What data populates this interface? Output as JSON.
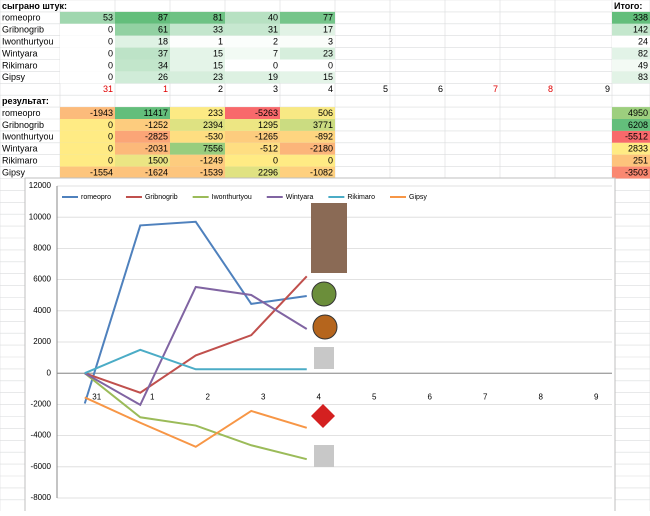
{
  "played": {
    "title": "сыграно штук:",
    "total_title": "Итого:",
    "rows": [
      {
        "name": "romeopro",
        "values": [
          53,
          87,
          81,
          40,
          77
        ],
        "total": 338
      },
      {
        "name": "Gribnogrib",
        "values": [
          0,
          61,
          33,
          31,
          17
        ],
        "total": 142
      },
      {
        "name": "Iwonthurtyou",
        "values": [
          0,
          18,
          1,
          2,
          3
        ],
        "total": 24
      },
      {
        "name": "Wintyara",
        "values": [
          0,
          37,
          15,
          7,
          23
        ],
        "total": 82
      },
      {
        "name": "Rikimaro",
        "values": [
          0,
          34,
          15,
          0,
          0
        ],
        "total": 49
      },
      {
        "name": "Gipsy",
        "values": [
          0,
          26,
          23,
          19,
          15
        ],
        "total": 83
      }
    ]
  },
  "days": [
    31,
    1,
    2,
    3,
    4,
    5,
    6,
    7,
    8,
    9
  ],
  "days_red": [
    true,
    true,
    false,
    false,
    false,
    false,
    false,
    true,
    true,
    false
  ],
  "result": {
    "title": "результат:",
    "rows": [
      {
        "name": "romeopro",
        "values": [
          -1943,
          11417,
          233,
          -5263,
          506
        ],
        "total": 4950
      },
      {
        "name": "Gribnogrib",
        "values": [
          0,
          -1252,
          2394,
          1295,
          3771
        ],
        "total": 6208
      },
      {
        "name": "Iwonthurtyou",
        "values": [
          0,
          -2825,
          -530,
          -1265,
          -892
        ],
        "total": -5512
      },
      {
        "name": "Wintyara",
        "values": [
          0,
          -2031,
          7556,
          -512,
          -2180
        ],
        "total": 2833
      },
      {
        "name": "Rikimaro",
        "values": [
          0,
          1500,
          -1249,
          0,
          0
        ],
        "total": 251
      },
      {
        "name": "Gipsy",
        "values": [
          -1554,
          -1624,
          -1539,
          2296,
          -1082
        ],
        "total": -3503
      }
    ]
  },
  "chart_data": {
    "type": "line",
    "categories": [
      31,
      1,
      2,
      3,
      4,
      5,
      6,
      7,
      8,
      9
    ],
    "series": [
      {
        "name": "romeopro",
        "color": "#4f81bd",
        "values": [
          -1943,
          9474,
          9707,
          4444,
          4950,
          null,
          null,
          null,
          null,
          null
        ]
      },
      {
        "name": "Gribnogrib",
        "color": "#c0504d",
        "values": [
          0,
          -1252,
          1142,
          2437,
          6208,
          null,
          null,
          null,
          null,
          null
        ]
      },
      {
        "name": "Iwonthurtyou",
        "color": "#9bbb59",
        "values": [
          0,
          -2825,
          -3355,
          -4620,
          -5512,
          null,
          null,
          null,
          null,
          null
        ]
      },
      {
        "name": "Wintyara",
        "color": "#8064a2",
        "values": [
          0,
          -2031,
          5525,
          5013,
          2833,
          null,
          null,
          null,
          null,
          null
        ]
      },
      {
        "name": "Rikimaro",
        "color": "#4bacc6",
        "values": [
          0,
          1500,
          251,
          251,
          251,
          null,
          null,
          null,
          null,
          null
        ]
      },
      {
        "name": "Gipsy",
        "color": "#f79646",
        "values": [
          -1554,
          -3178,
          -4717,
          -2421,
          -3503,
          null,
          null,
          null,
          null,
          null
        ]
      }
    ],
    "ylim": [
      -8000,
      12000
    ],
    "yticks": [
      -8000,
      -6000,
      -4000,
      -2000,
      0,
      2000,
      4000,
      6000,
      8000,
      10000,
      12000
    ],
    "grid": true,
    "legend": "top"
  }
}
